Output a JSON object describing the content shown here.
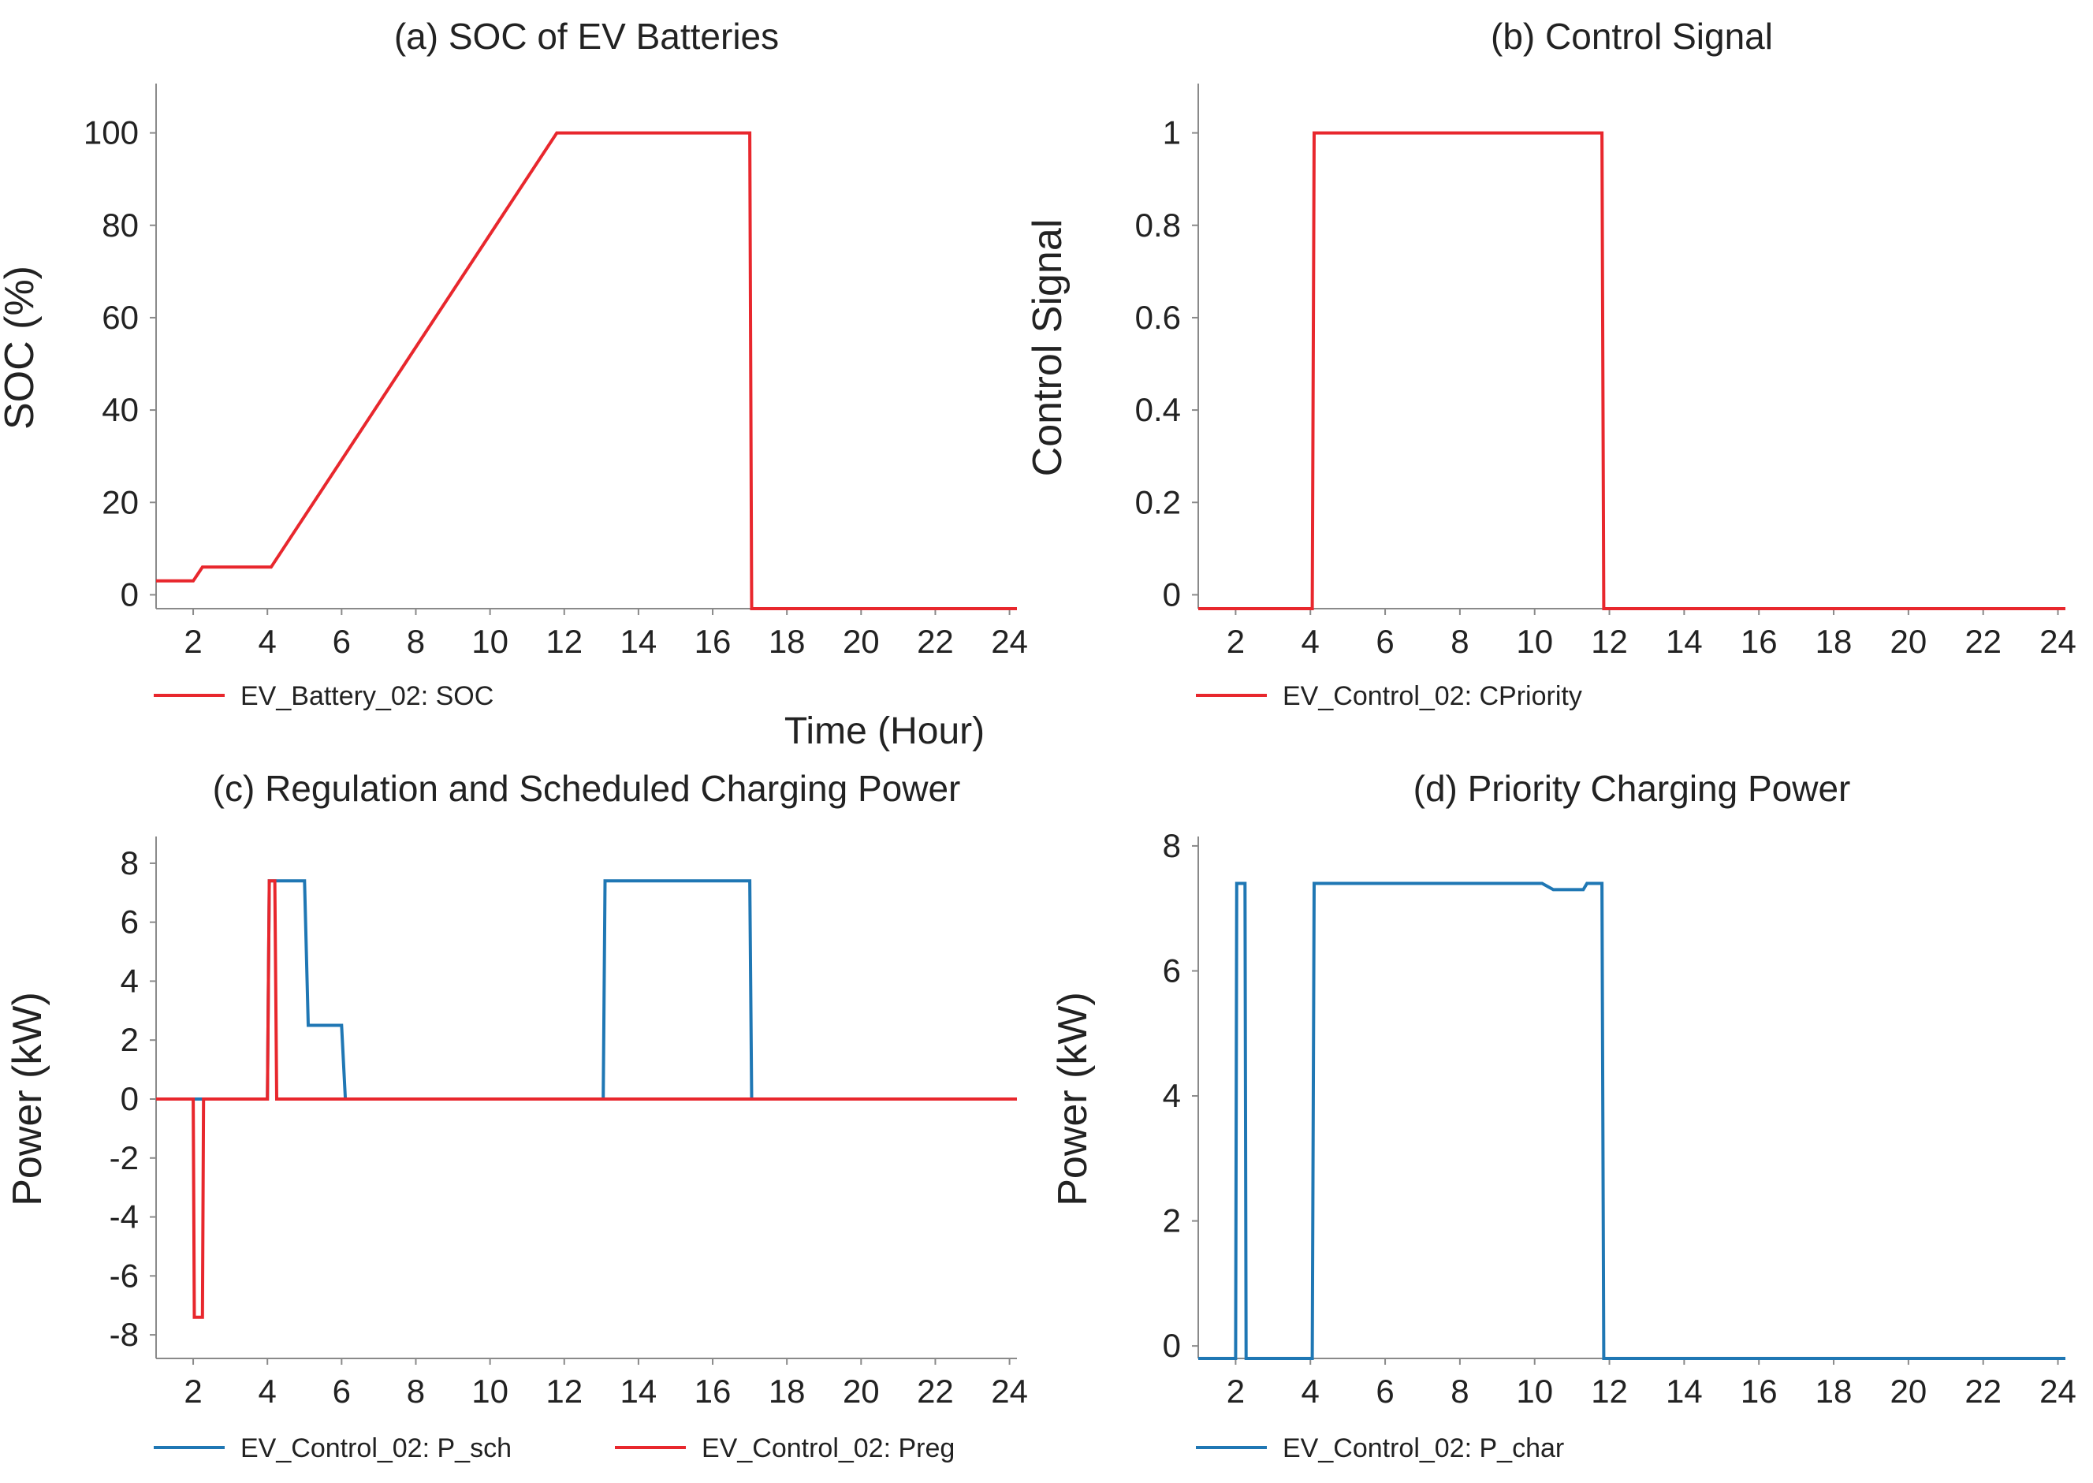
{
  "figure": {
    "xlabel": "Time (Hour)"
  },
  "chart_data": [
    {
      "type": "line",
      "title": "(a) SOC of EV Batteries",
      "ylabel": "SOC (%)",
      "xlabel": "",
      "xlim": [
        1,
        24.2
      ],
      "ylim": [
        -3,
        110
      ],
      "xticks": [
        2,
        4,
        6,
        8,
        10,
        12,
        14,
        16,
        18,
        20,
        22,
        24
      ],
      "xtick_labels": [
        "2",
        "4",
        "6",
        "8",
        "10",
        "12",
        "14",
        "16",
        "18",
        "20",
        "22",
        "24"
      ],
      "yticks": [
        0,
        20,
        40,
        60,
        80,
        100
      ],
      "ytick_labels": [
        "0",
        "20",
        "40",
        "60",
        "80",
        "100"
      ],
      "series": [
        {
          "name": "EV_Battery_02: SOC",
          "color": "#e8272d",
          "x": [
            1,
            2,
            2.25,
            4.1,
            11.8,
            17,
            17.05,
            24.2
          ],
          "y": [
            3,
            3,
            6,
            6,
            100,
            100,
            -3,
            -3
          ]
        }
      ]
    },
    {
      "type": "line",
      "title": "(b) Control Signal",
      "ylabel": "Control Signal",
      "xlabel": "",
      "xlim": [
        1,
        24.2
      ],
      "ylim": [
        -0.03,
        1.1
      ],
      "xticks": [
        2,
        4,
        6,
        8,
        10,
        12,
        14,
        16,
        18,
        20,
        22,
        24
      ],
      "xtick_labels": [
        "2",
        "4",
        "6",
        "8",
        "10",
        "12",
        "14",
        "16",
        "18",
        "20",
        "22",
        "24"
      ],
      "yticks": [
        0,
        0.2,
        0.4,
        0.6,
        0.8,
        1
      ],
      "ytick_labels": [
        "0",
        "0.2",
        "0.4",
        "0.6",
        "0.8",
        "1"
      ],
      "series": [
        {
          "name": "EV_Control_02: CPriority",
          "color": "#e8272d",
          "x": [
            1,
            4.05,
            4.1,
            11.8,
            11.85,
            24.2
          ],
          "y": [
            -0.03,
            -0.03,
            1,
            1,
            -0.03,
            -0.03
          ]
        }
      ]
    },
    {
      "type": "line",
      "title": "(c) Regulation and Scheduled Charging Power",
      "ylabel": "Power (kW)",
      "xlabel": "",
      "xlim": [
        1,
        24.2
      ],
      "ylim": [
        -8.8,
        8.8
      ],
      "xticks": [
        2,
        4,
        6,
        8,
        10,
        12,
        14,
        16,
        18,
        20,
        22,
        24
      ],
      "xtick_labels": [
        "2",
        "4",
        "6",
        "8",
        "10",
        "12",
        "14",
        "16",
        "18",
        "20",
        "22",
        "24"
      ],
      "yticks": [
        8,
        6,
        4,
        2,
        0,
        -2,
        -4,
        -6,
        -8
      ],
      "ytick_labels": [
        "8",
        "6",
        "4",
        "2",
        "0",
        "-2",
        "-4",
        "-6",
        "-8"
      ],
      "series": [
        {
          "name": "EV_Control_02: P_sch",
          "color": "#1f77b4",
          "x": [
            1,
            4,
            4.05,
            5,
            5.1,
            6,
            6.1,
            13.05,
            13.1,
            17,
            17.05,
            24.2
          ],
          "y": [
            0,
            0,
            7.4,
            7.4,
            2.5,
            2.5,
            0,
            0,
            7.4,
            7.4,
            0,
            0
          ]
        },
        {
          "name": "EV_Control_02: Preg",
          "color": "#e8272d",
          "x": [
            1,
            2,
            2.03,
            2.25,
            2.28,
            4,
            4.05,
            4.2,
            4.25,
            24.2
          ],
          "y": [
            0,
            0,
            -7.4,
            -7.4,
            0,
            0,
            7.4,
            7.4,
            0,
            0
          ]
        }
      ]
    },
    {
      "type": "line",
      "title": "(d) Priority Charging Power",
      "ylabel": "Power (kW)",
      "xlabel": "",
      "xlim": [
        1,
        24.2
      ],
      "ylim": [
        -0.2,
        8.1
      ],
      "xticks": [
        2,
        4,
        6,
        8,
        10,
        12,
        14,
        16,
        18,
        20,
        22,
        24
      ],
      "xtick_labels": [
        "2",
        "4",
        "6",
        "8",
        "10",
        "12",
        "14",
        "16",
        "18",
        "20",
        "22",
        "24"
      ],
      "yticks": [
        0,
        2,
        4,
        6,
        8
      ],
      "ytick_labels": [
        "0",
        "2",
        "4",
        "6",
        "8"
      ],
      "series": [
        {
          "name": "EV_Control_02: P_char",
          "color": "#1f77b4",
          "x": [
            1,
            2,
            2.03,
            2.25,
            2.28,
            4.05,
            4.1,
            10.2,
            10.5,
            11,
            11.3,
            11.4,
            11.8,
            11.85,
            24.2
          ],
          "y": [
            -0.2,
            -0.2,
            7.4,
            7.4,
            -0.2,
            -0.2,
            7.4,
            7.4,
            7.3,
            7.3,
            7.3,
            7.4,
            7.4,
            -0.2,
            -0.2
          ]
        }
      ]
    }
  ]
}
